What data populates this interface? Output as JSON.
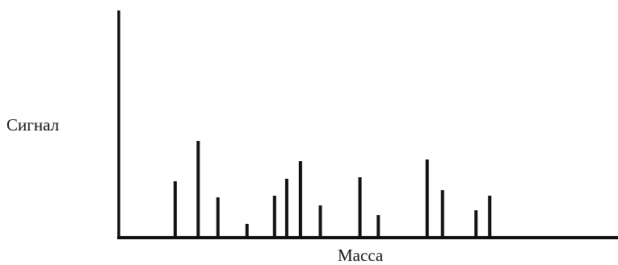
{
  "chart_data": {
    "type": "bar",
    "title": "",
    "xlabel": "Масса",
    "ylabel": "Сигнал",
    "x": [
      15,
      30,
      43,
      62,
      80,
      88,
      97,
      110,
      136,
      148,
      180,
      190,
      212,
      221
    ],
    "values": [
      70,
      120,
      50,
      17,
      52,
      73,
      95,
      40,
      75,
      28,
      97,
      59,
      34,
      52
    ],
    "xlim": [
      -22,
      305
    ],
    "ylim": [
      0,
      280
    ],
    "grid": false,
    "legend": "none",
    "bar_color": "#111111"
  }
}
